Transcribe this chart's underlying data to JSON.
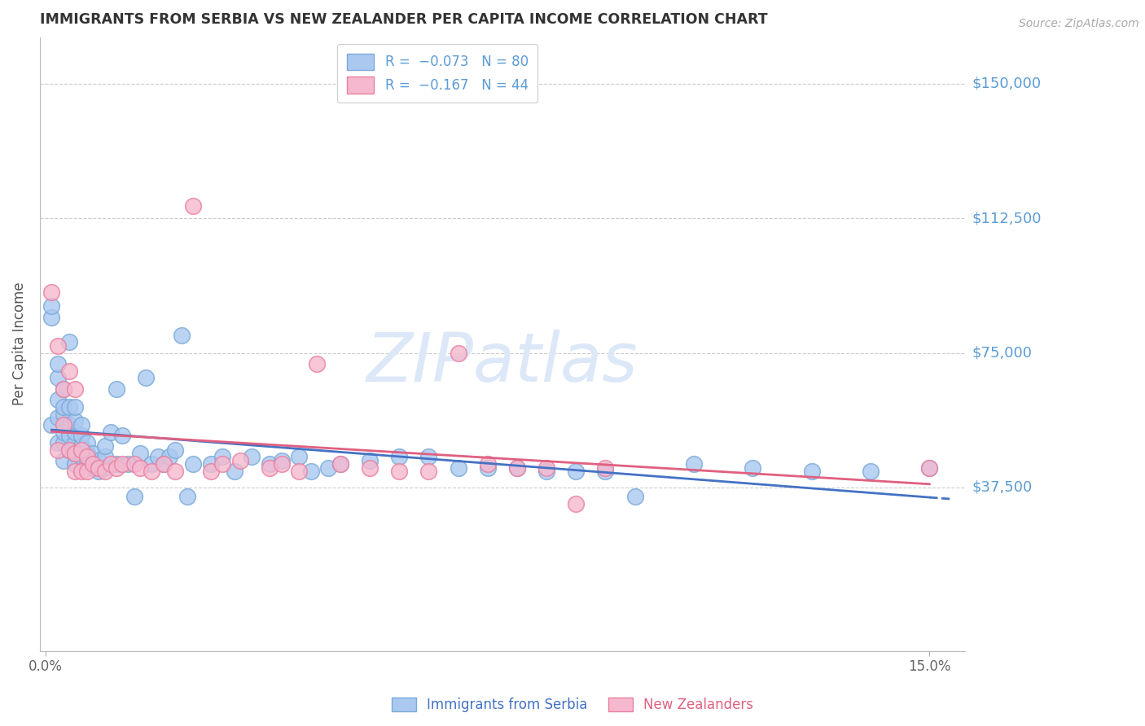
{
  "title": "IMMIGRANTS FROM SERBIA VS NEW ZEALANDER PER CAPITA INCOME CORRELATION CHART",
  "source": "Source: ZipAtlas.com",
  "ylabel": "Per Capita Income",
  "color_serbia": "#aac8f0",
  "color_nz": "#f5b8ce",
  "color_serbia_edge": "#7aaad8",
  "color_nz_edge": "#e880a0",
  "color_serbia_line": "#4472c4",
  "color_nz_line": "#e06080",
  "color_axis_labels": "#5b9bd5",
  "color_watermark": "#dce8f8",
  "color_title": "#333333",
  "color_source": "#aaaaaa",
  "legend_r_serbia": "R = ",
  "legend_rv_serbia": "-0.073",
  "legend_n_serbia": "N = ",
  "legend_nv_serbia": "80",
  "legend_r_nz": "R = ",
  "legend_rv_nz": "-0.167",
  "legend_n_nz": "N = ",
  "legend_nv_nz": "44",
  "legend_label_serbia": "Immigrants from Serbia",
  "legend_label_nz": "New Zealanders",
  "ytick_vals": [
    37500,
    75000,
    112500,
    150000
  ],
  "ytick_labels": [
    "$37,500",
    "$75,000",
    "$112,500",
    "$150,000"
  ],
  "ylim": [
    -8000,
    163000
  ],
  "xlim": [
    -0.001,
    0.156
  ],
  "serbia_x": [
    0.001,
    0.001,
    0.001,
    0.002,
    0.002,
    0.002,
    0.002,
    0.002,
    0.003,
    0.003,
    0.003,
    0.003,
    0.003,
    0.003,
    0.004,
    0.004,
    0.004,
    0.004,
    0.004,
    0.005,
    0.005,
    0.005,
    0.005,
    0.005,
    0.005,
    0.006,
    0.006,
    0.006,
    0.006,
    0.007,
    0.007,
    0.007,
    0.008,
    0.008,
    0.009,
    0.009,
    0.01,
    0.01,
    0.01,
    0.011,
    0.012,
    0.012,
    0.013,
    0.014,
    0.015,
    0.016,
    0.017,
    0.018,
    0.019,
    0.02,
    0.021,
    0.022,
    0.023,
    0.024,
    0.025,
    0.028,
    0.03,
    0.032,
    0.035,
    0.038,
    0.04,
    0.043,
    0.045,
    0.048,
    0.05,
    0.055,
    0.06,
    0.065,
    0.07,
    0.075,
    0.08,
    0.085,
    0.09,
    0.095,
    0.1,
    0.11,
    0.12,
    0.13,
    0.14,
    0.15
  ],
  "serbia_y": [
    55000,
    85000,
    88000,
    50000,
    57000,
    62000,
    68000,
    72000,
    45000,
    50000,
    53000,
    58000,
    60000,
    65000,
    48000,
    52000,
    55000,
    60000,
    78000,
    44000,
    47000,
    50000,
    53000,
    56000,
    60000,
    46000,
    49000,
    52000,
    55000,
    44000,
    47000,
    50000,
    43000,
    47000,
    42000,
    45000,
    43000,
    46000,
    49000,
    53000,
    65000,
    44000,
    52000,
    44000,
    35000,
    47000,
    68000,
    44000,
    46000,
    44000,
    46000,
    48000,
    80000,
    35000,
    44000,
    44000,
    46000,
    42000,
    46000,
    44000,
    45000,
    46000,
    42000,
    43000,
    44000,
    45000,
    46000,
    46000,
    43000,
    43000,
    43000,
    42000,
    42000,
    42000,
    35000,
    44000,
    43000,
    42000,
    42000,
    43000
  ],
  "nz_x": [
    0.001,
    0.002,
    0.002,
    0.003,
    0.003,
    0.004,
    0.004,
    0.005,
    0.005,
    0.005,
    0.006,
    0.006,
    0.007,
    0.007,
    0.008,
    0.009,
    0.01,
    0.011,
    0.012,
    0.013,
    0.015,
    0.016,
    0.018,
    0.02,
    0.022,
    0.025,
    0.028,
    0.03,
    0.033,
    0.038,
    0.04,
    0.043,
    0.046,
    0.05,
    0.055,
    0.06,
    0.065,
    0.07,
    0.075,
    0.08,
    0.085,
    0.09,
    0.095,
    0.15
  ],
  "nz_y": [
    92000,
    48000,
    77000,
    65000,
    55000,
    48000,
    70000,
    42000,
    47000,
    65000,
    42000,
    48000,
    42000,
    46000,
    44000,
    43000,
    42000,
    44000,
    43000,
    44000,
    44000,
    43000,
    42000,
    44000,
    42000,
    116000,
    42000,
    44000,
    45000,
    43000,
    44000,
    42000,
    72000,
    44000,
    43000,
    42000,
    42000,
    75000,
    44000,
    43000,
    43000,
    33000,
    43000,
    43000
  ]
}
